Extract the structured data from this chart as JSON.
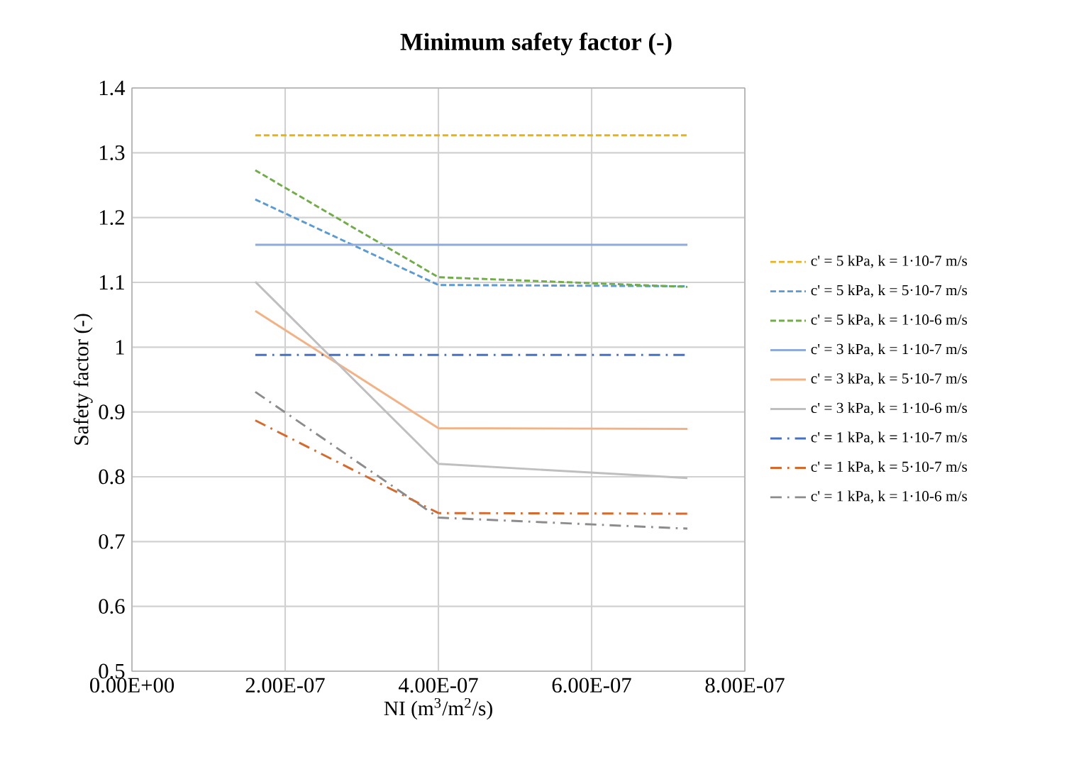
{
  "chart_data": {
    "type": "line",
    "title": "Minimum safety factor (-)",
    "xlabel": "NI (m$^{3}$/m$^{2}$/s)",
    "ylabel": "Safety factor (-)",
    "xlim": [
      0,
      8e-07
    ],
    "ylim": [
      0.5,
      1.4
    ],
    "xticks": [
      {
        "value": 0,
        "label": "0.00E+00"
      },
      {
        "value": 2e-07,
        "label": "2.00E-07"
      },
      {
        "value": 4e-07,
        "label": "4.00E-07"
      },
      {
        "value": 6e-07,
        "label": "6.00E-07"
      },
      {
        "value": 8e-07,
        "label": "8.00E-07"
      }
    ],
    "yticks": [
      0.5,
      0.6,
      0.7,
      0.8,
      0.9,
      1,
      1.1,
      1.2,
      1.3,
      1.4
    ],
    "grid": true,
    "legend": "right",
    "marker": "none",
    "x": [
      1.61e-07,
      4e-07,
      7.25e-07
    ],
    "series": [
      {
        "name": "c' = 5 kPa, k = 1·10-7 m/s",
        "color": "#e6b319",
        "line_style": "dashed",
        "values": [
          1.327,
          1.327,
          1.327
        ]
      },
      {
        "name": "c' = 5 kPa, k = 5·10-7 m/s",
        "color": "#5b9bd5",
        "line_style": "dashed",
        "values": [
          1.228,
          1.096,
          1.094
        ]
      },
      {
        "name": "c' = 5 kPa, k = 1·10-6 m/s",
        "color": "#70ad47",
        "line_style": "dashed",
        "values": [
          1.273,
          1.108,
          1.093
        ]
      },
      {
        "name": "c' = 3 kPa, k = 1·10-7 m/s",
        "color": "#8faadc",
        "line_style": "solid",
        "values": [
          1.158,
          1.158,
          1.158
        ]
      },
      {
        "name": "c' = 3 kPa, k = 5·10-7 m/s",
        "color": "#f4b183",
        "line_style": "solid",
        "values": [
          1.056,
          0.875,
          0.874
        ]
      },
      {
        "name": "c' = 3 kPa, k = 1·10-6 m/s",
        "color": "#bfbfbf",
        "line_style": "solid",
        "values": [
          1.101,
          0.82,
          0.798
        ]
      },
      {
        "name": "c' = 1 kPa, k = 1·10-7 m/s",
        "color": "#4472c4",
        "line_style": "dashdot",
        "values": [
          0.988,
          0.988,
          0.988
        ]
      },
      {
        "name": "c' = 1 kPa, k = 5·10-7 m/s",
        "color": "#d8692a",
        "line_style": "dashdot",
        "values": [
          0.887,
          0.744,
          0.743
        ]
      },
      {
        "name": "c' = 1 kPa, k = 1·10-6 m/s",
        "color": "#8c8c8c",
        "line_style": "dashdot",
        "values": [
          0.931,
          0.737,
          0.72
        ]
      }
    ]
  }
}
